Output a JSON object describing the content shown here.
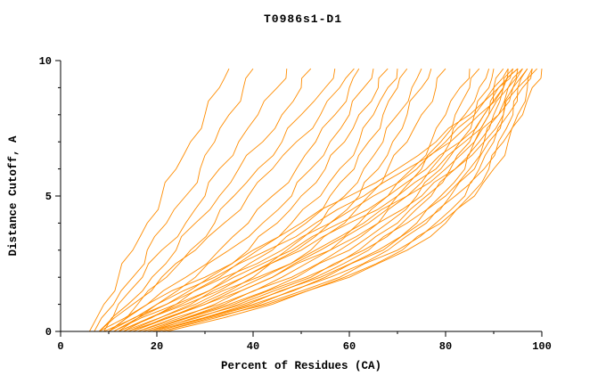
{
  "title": "T0986s1-D1",
  "chart_data": {
    "type": "line",
    "title": "T0986s1-D1",
    "xlabel": "Percent of Residues (CA)",
    "ylabel": "Distance Cutoff, A",
    "xlim": [
      0,
      100
    ],
    "ylim": [
      0,
      10
    ],
    "x_ticks": [
      0,
      20,
      40,
      60,
      80,
      100
    ],
    "y_ticks": [
      0,
      5,
      10
    ],
    "x_minor_step": 10,
    "y_minor_step": 1,
    "grid": false,
    "legend": "none",
    "line_color": "#ff8c00",
    "axis_color": "#000000",
    "y_levels": [
      0,
      1,
      2,
      3,
      4,
      5,
      6,
      7,
      8,
      9,
      9.7
    ],
    "series": [
      [
        6,
        9,
        12,
        15,
        18,
        21,
        24,
        27,
        30,
        33,
        35
      ],
      [
        7,
        11,
        15,
        18,
        22,
        26,
        29,
        32,
        35,
        38,
        40
      ],
      [
        8,
        12,
        17,
        21,
        26,
        30,
        33,
        37,
        41,
        45,
        47
      ],
      [
        9,
        14,
        19,
        24,
        28,
        33,
        37,
        42,
        46,
        50,
        52
      ],
      [
        10,
        16,
        22,
        27,
        32,
        36,
        41,
        46,
        50,
        55,
        57
      ],
      [
        8,
        15,
        21,
        28,
        34,
        39,
        44,
        49,
        54,
        58,
        61
      ],
      [
        10,
        18,
        26,
        33,
        39,
        44,
        49,
        53,
        57,
        60,
        62
      ],
      [
        11,
        20,
        28,
        35,
        42,
        48,
        52,
        56,
        60,
        63,
        65
      ],
      [
        12,
        22,
        31,
        39,
        45,
        50,
        55,
        59,
        62,
        66,
        68
      ],
      [
        12,
        24,
        33,
        41,
        48,
        54,
        58,
        62,
        65,
        68,
        70
      ],
      [
        13,
        25,
        35,
        44,
        51,
        56,
        61,
        64,
        67,
        70,
        72
      ],
      [
        14,
        27,
        38,
        47,
        54,
        59,
        63,
        67,
        70,
        73,
        75
      ],
      [
        15,
        29,
        40,
        49,
        56,
        62,
        66,
        69,
        72,
        75,
        77
      ],
      [
        15,
        30,
        42,
        52,
        59,
        64,
        68,
        72,
        75,
        78,
        80
      ],
      [
        16,
        32,
        44,
        54,
        62,
        68,
        73,
        77,
        80,
        83,
        85
      ],
      [
        16,
        33,
        46,
        56,
        64,
        70,
        75,
        79,
        82,
        85,
        87
      ],
      [
        17,
        34,
        48,
        58,
        66,
        72,
        77,
        81,
        84,
        87,
        89
      ],
      [
        17,
        35,
        49,
        60,
        68,
        74,
        79,
        83,
        86,
        89,
        90
      ],
      [
        18,
        36,
        51,
        62,
        70,
        76,
        81,
        85,
        88,
        90,
        92
      ],
      [
        18,
        37,
        52,
        63,
        71,
        77,
        82,
        86,
        89,
        91,
        93
      ],
      [
        19,
        38,
        53,
        64,
        72,
        79,
        84,
        87,
        90,
        92,
        94
      ],
      [
        19,
        39,
        54,
        66,
        74,
        80,
        85,
        88,
        91,
        93,
        95
      ],
      [
        20,
        40,
        55,
        67,
        75,
        81,
        86,
        89,
        92,
        94,
        96
      ],
      [
        20,
        41,
        56,
        68,
        76,
        82,
        87,
        90,
        93,
        95,
        97
      ],
      [
        21,
        42,
        58,
        70,
        78,
        84,
        88,
        91,
        94,
        96,
        98
      ],
      [
        21,
        43,
        59,
        71,
        79,
        85,
        89,
        92,
        95,
        97,
        99
      ],
      [
        22,
        44,
        60,
        72,
        80,
        86,
        90,
        93,
        96,
        98,
        100
      ],
      [
        12,
        26,
        38,
        50,
        60,
        70,
        78,
        84,
        89,
        93,
        96
      ],
      [
        13,
        28,
        41,
        53,
        63,
        72,
        80,
        86,
        91,
        94,
        97
      ],
      [
        14,
        30,
        44,
        56,
        66,
        75,
        82,
        88,
        92,
        95,
        98
      ],
      [
        10,
        22,
        34,
        46,
        56,
        65,
        74,
        81,
        87,
        92,
        95
      ],
      [
        9,
        20,
        32,
        43,
        53,
        63,
        72,
        80,
        86,
        91,
        94
      ],
      [
        11,
        24,
        36,
        48,
        58,
        68,
        76,
        83,
        88,
        92,
        95
      ],
      [
        8,
        18,
        30,
        40,
        50,
        60,
        70,
        78,
        85,
        90,
        93
      ]
    ]
  }
}
